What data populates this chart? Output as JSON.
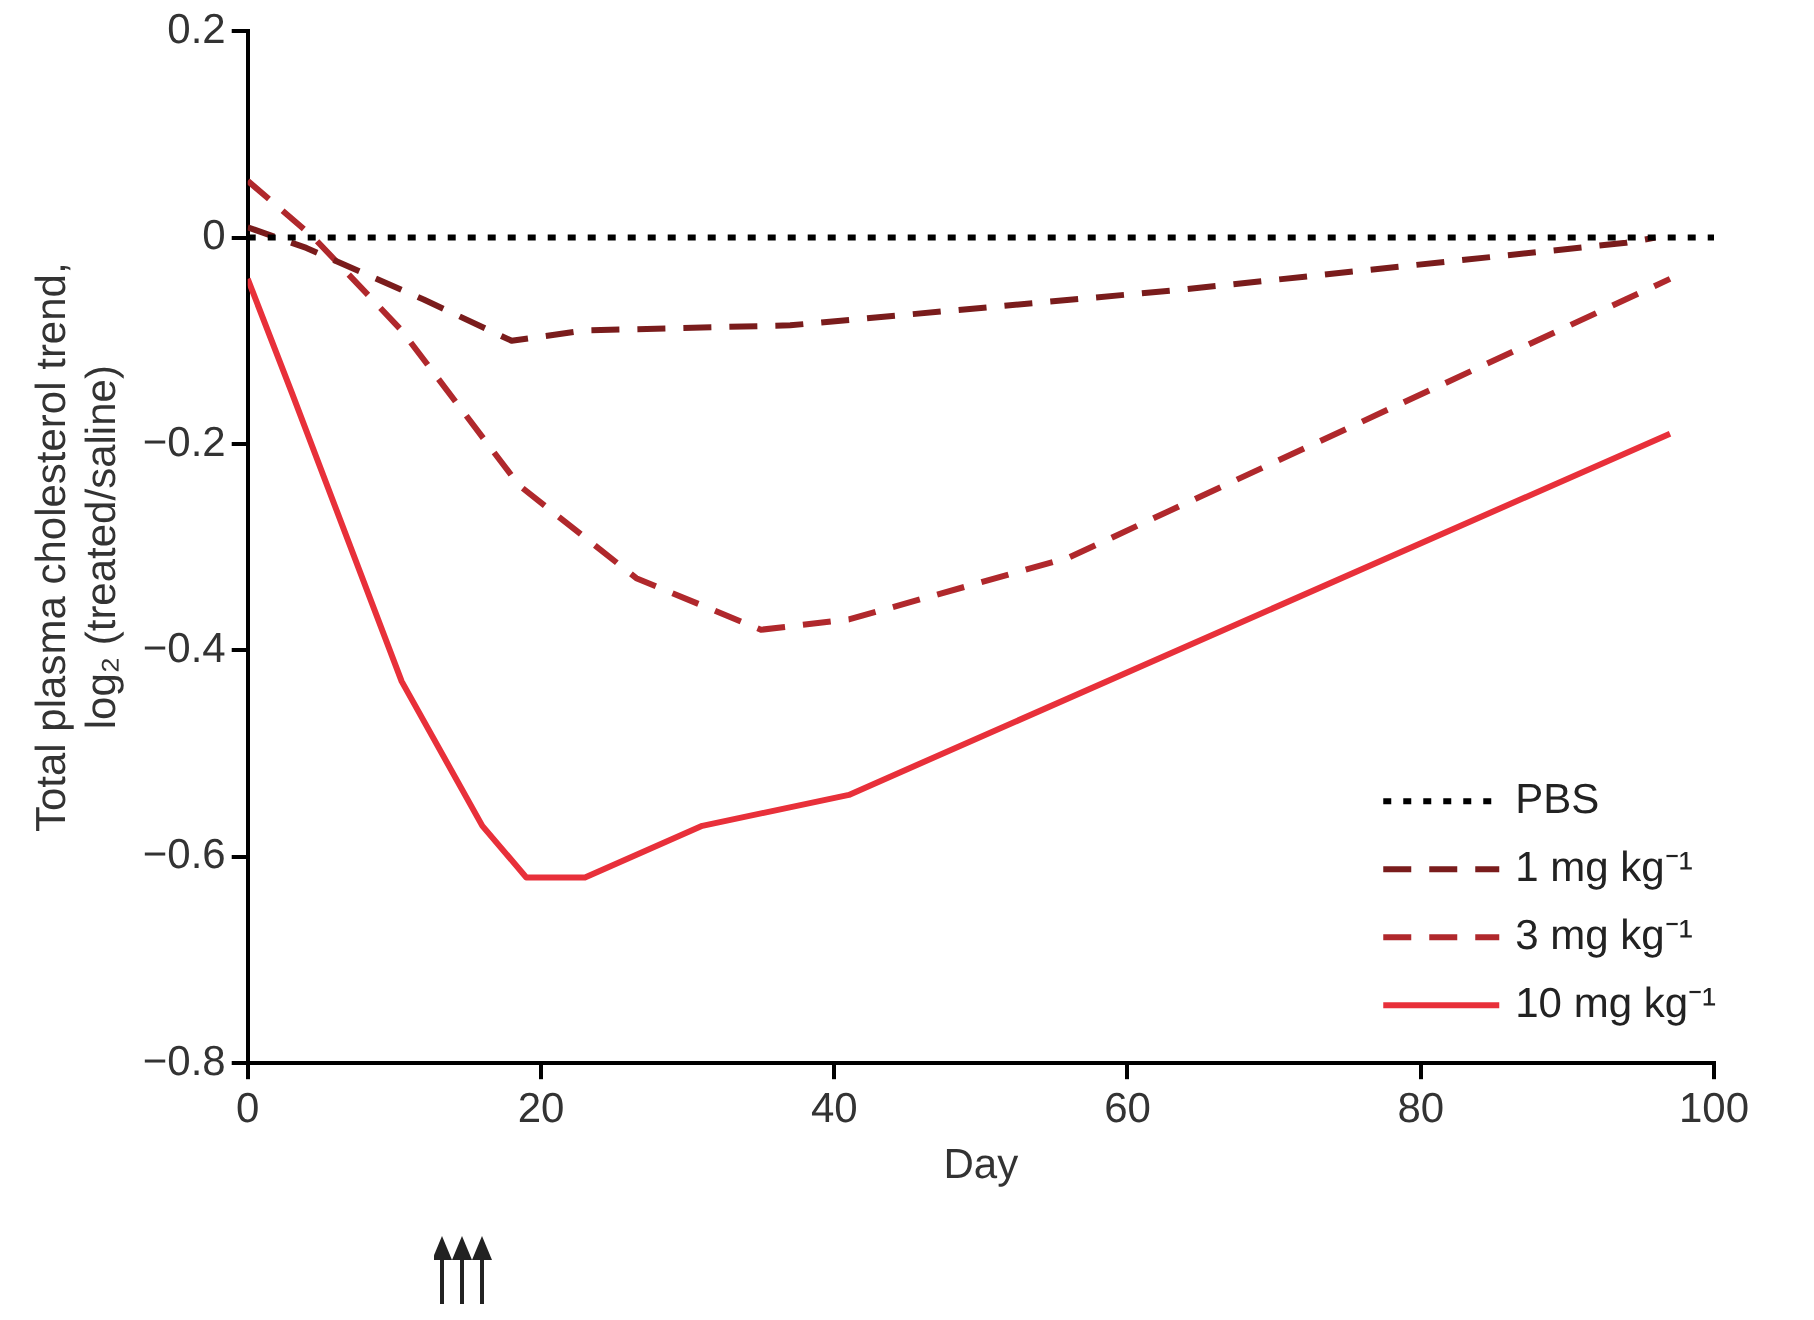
{
  "chart_data": {
    "type": "line",
    "xlabel": "Day",
    "ylabel": "Total plasma cholesterol trend,\nlog₂ (treated/saline)",
    "xlim": [
      0,
      100
    ],
    "xticks": [
      0,
      20,
      40,
      60,
      80,
      100
    ],
    "ylim": [
      -0.8,
      0.2
    ],
    "yticks": [
      -0.8,
      -0.6,
      -0.4,
      -0.2,
      0,
      0.2
    ],
    "grid": false,
    "legend": "bottom right",
    "marker": "none",
    "series": [
      {
        "name": "PBS",
        "color": "#000000",
        "line_style": "dotted",
        "x": [
          0,
          100
        ],
        "values": [
          0,
          0
        ]
      },
      {
        "name": "1 mg kg⁻¹",
        "color": "#7a1c1c",
        "line_style": "dashed",
        "x": [
          0,
          4,
          12,
          18,
          23,
          37,
          64,
          94,
          96
        ],
        "values": [
          0.01,
          -0.01,
          -0.06,
          -0.1,
          -0.09,
          -0.085,
          -0.05,
          -0.005,
          0
        ]
      },
      {
        "name": "3 mg kg⁻¹",
        "color": "#b0282c",
        "line_style": "dashed",
        "x": [
          0,
          4.5,
          10.5,
          18.5,
          26.5,
          35,
          41,
          56,
          97
        ],
        "values": [
          0.055,
          0,
          -0.09,
          -0.24,
          -0.33,
          -0.38,
          -0.37,
          -0.31,
          -0.04
        ]
      },
      {
        "name": "10 mg kg⁻¹",
        "color": "#e8303a",
        "line_style": "solid",
        "x": [
          0,
          3,
          10.5,
          16,
          19,
          23,
          31,
          41,
          97
        ],
        "values": [
          -0.04,
          -0.15,
          -0.43,
          -0.57,
          -0.62,
          -0.62,
          -0.57,
          -0.54,
          -0.19
        ]
      }
    ]
  }
}
